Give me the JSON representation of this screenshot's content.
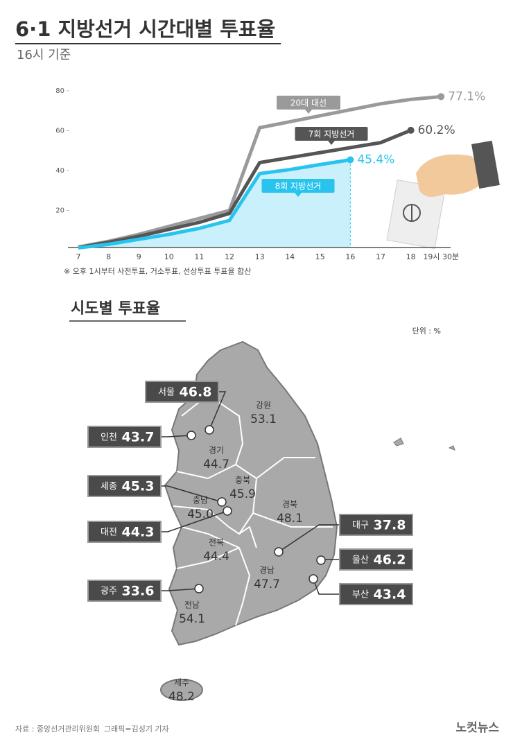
{
  "header": {
    "title": "6·1 지방선거 시간대별 투표율",
    "subtitle": "16시 기준"
  },
  "chart_data": [
    {
      "type": "line",
      "categories": [
        "7",
        "8",
        "9",
        "10",
        "11",
        "12",
        "13",
        "14",
        "15",
        "16",
        "17",
        "18",
        "19시 30분"
      ],
      "ylim": [
        0,
        80
      ],
      "yticks": [
        20,
        40,
        60,
        80
      ],
      "grid": false,
      "series": [
        {
          "name": "20대 대선",
          "color": "#9a9a9a",
          "values": [
            1.6,
            4.5,
            8,
            12,
            16,
            20,
            61.5,
            64.5,
            67.5,
            70.5,
            73.5,
            75.7,
            77.1
          ],
          "value_labels": [
            null,
            null,
            null,
            null,
            null,
            null,
            null,
            null,
            null,
            null,
            null,
            null,
            "77.1%"
          ]
        },
        {
          "name": "7회 지방선거",
          "color": "#555555",
          "values": [
            1.4,
            4,
            7,
            10.5,
            14,
            18.5,
            44,
            46.5,
            49,
            51.5,
            54,
            60.2,
            null
          ],
          "value_labels": [
            null,
            null,
            null,
            null,
            null,
            null,
            null,
            null,
            null,
            null,
            null,
            "60.2%",
            null
          ]
        },
        {
          "name": "8회 지방선거",
          "color": "#29c4ee",
          "area": true,
          "values": [
            1.2,
            3,
            5.5,
            8,
            11,
            15,
            38.5,
            40.5,
            43,
            45.4,
            null,
            null,
            null
          ],
          "value_labels": [
            null,
            null,
            null,
            null,
            null,
            null,
            null,
            null,
            null,
            "45.4%",
            null,
            null,
            null
          ]
        }
      ],
      "note": "※ 오후 1시부터 사전투표, 거소투표, 선상투표 투표율 합산"
    },
    {
      "type": "map",
      "title": "시도별 투표율",
      "unit": "단위 : %",
      "categories": [
        "서울",
        "인천",
        "세종",
        "대전",
        "광주",
        "대구",
        "울산",
        "부산",
        "강원",
        "경기",
        "충북",
        "충남",
        "경북",
        "전북",
        "경남",
        "전남",
        "제주"
      ],
      "values": [
        46.8,
        43.7,
        45.3,
        44.3,
        33.6,
        37.8,
        46.2,
        43.4,
        53.1,
        44.7,
        45.9,
        45.0,
        48.1,
        44.4,
        47.7,
        54.1,
        48.2
      ],
      "value_labels": [
        null,
        null,
        null,
        null,
        null,
        null,
        null,
        null,
        null,
        null,
        null,
        "45.0",
        null,
        null,
        null,
        null,
        null
      ]
    }
  ],
  "footer": {
    "source": "자료 : 중앙선거관리위원회",
    "credit": "그래픽=김성기 기자",
    "logo": "노컷뉴스"
  }
}
